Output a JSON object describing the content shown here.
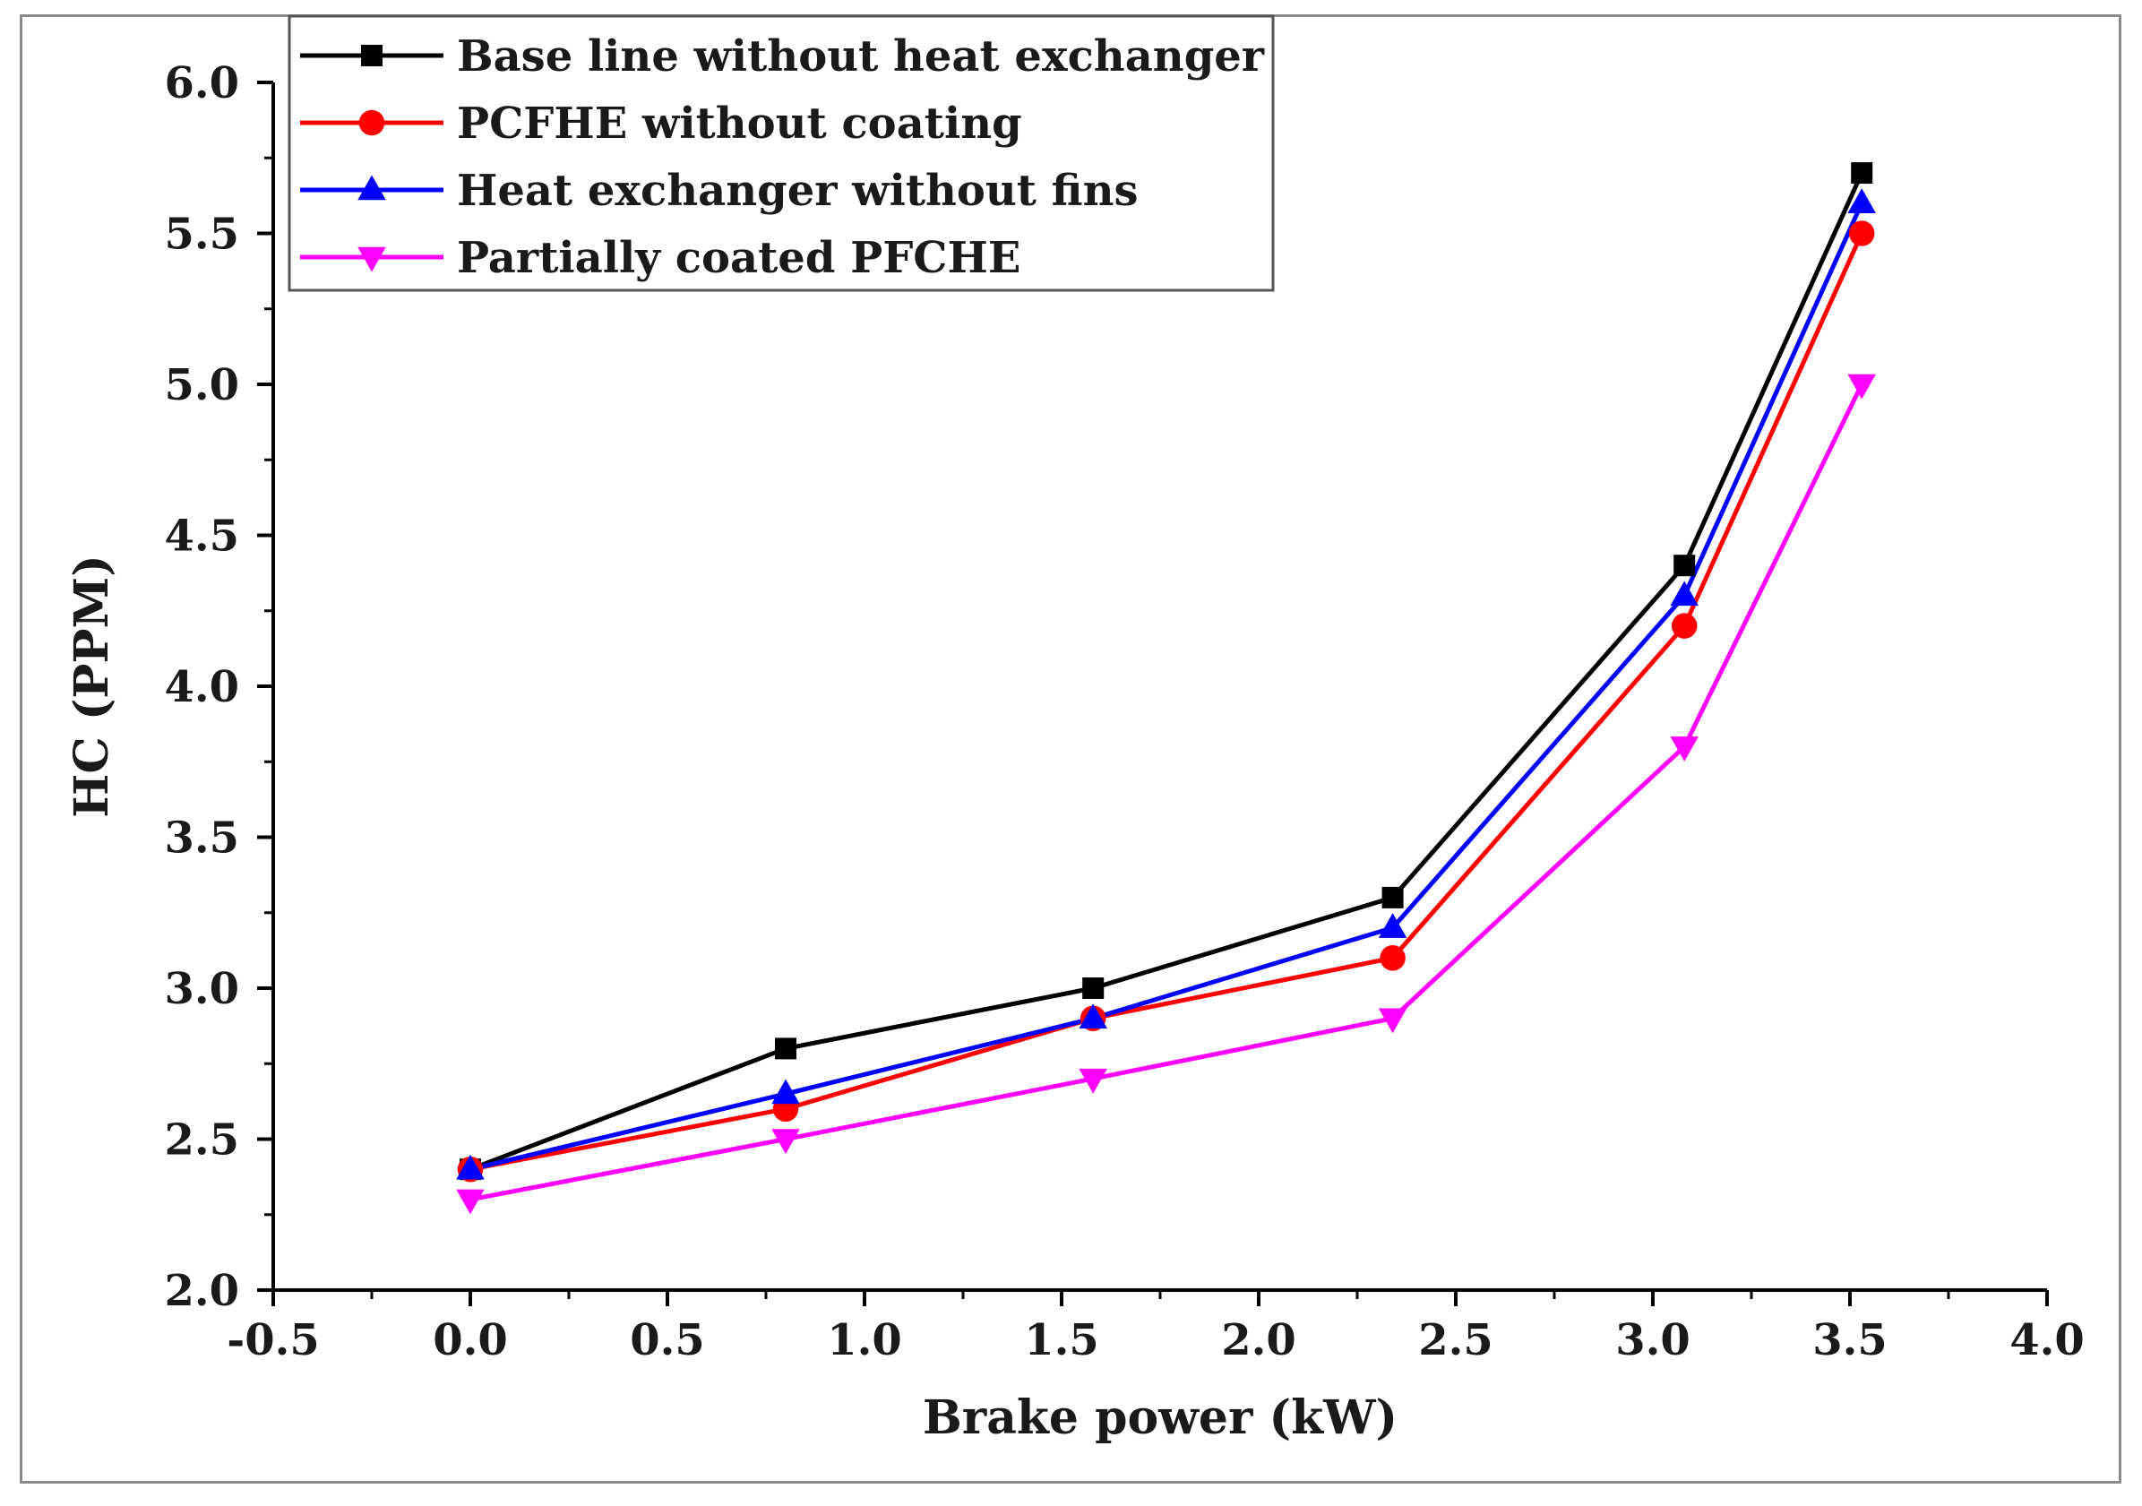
{
  "chart_data": {
    "type": "line",
    "title": "",
    "xlabel": "Brake power (kW)",
    "ylabel": "HC (PPM)",
    "xlim": [
      -0.5,
      4.0
    ],
    "ylim": [
      2.0,
      6.0
    ],
    "xticks": [
      "-0.5",
      "0.0",
      "0.5",
      "1.0",
      "1.5",
      "2.0",
      "2.5",
      "3.0",
      "3.5",
      "4.0"
    ],
    "yticks": [
      "2.0",
      "2.5",
      "3.0",
      "3.5",
      "4.0",
      "4.5",
      "5.0",
      "5.5",
      "6.0"
    ],
    "grid": false,
    "legend_position": "top-left",
    "series": [
      {
        "name": "Base line without heat exchanger",
        "color": "#000000",
        "marker": "square",
        "x": [
          0.0,
          0.8,
          1.58,
          2.34,
          3.08,
          3.53
        ],
        "y": [
          2.4,
          2.8,
          3.0,
          3.3,
          4.4,
          5.7
        ]
      },
      {
        "name": "PCFHE without coating",
        "color": "#ff0000",
        "marker": "circle",
        "x": [
          0.0,
          0.8,
          1.58,
          2.34,
          3.08,
          3.53
        ],
        "y": [
          2.4,
          2.6,
          2.9,
          3.1,
          4.2,
          5.5
        ]
      },
      {
        "name": "Heat exchanger without fins",
        "color": "#0000ff",
        "marker": "triangle-up",
        "x": [
          0.0,
          0.8,
          1.58,
          2.34,
          3.08,
          3.53
        ],
        "y": [
          2.4,
          2.65,
          2.9,
          3.2,
          4.3,
          5.6
        ]
      },
      {
        "name": "Partially coated PFCHE",
        "color": "#ff00ff",
        "marker": "triangle-down",
        "x": [
          0.0,
          0.8,
          1.58,
          2.34,
          3.08,
          3.53
        ],
        "y": [
          2.3,
          2.5,
          2.7,
          2.9,
          3.8,
          5.0
        ]
      }
    ]
  }
}
